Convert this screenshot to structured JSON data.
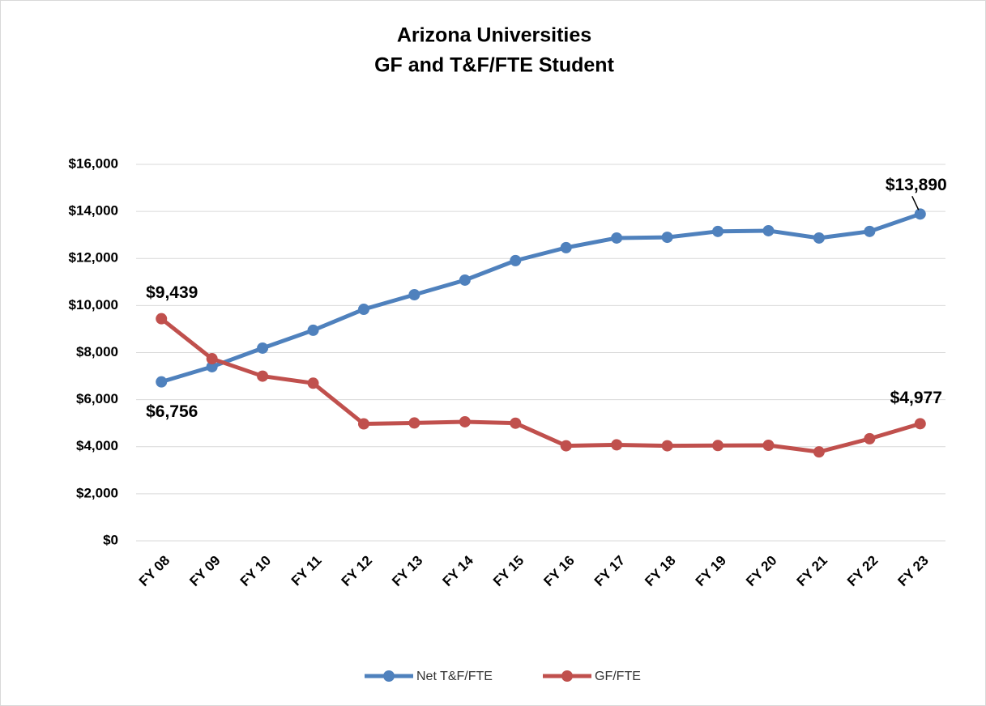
{
  "chart_data": {
    "type": "line",
    "title": "Arizona Universities",
    "subtitle": "GF and T&F/FTE Student",
    "categories": [
      "FY 08",
      "FY 09",
      "FY 10",
      "FY 11",
      "FY 12",
      "FY 13",
      "FY 14",
      "FY 15",
      "FY 16",
      "FY 17",
      "FY 18",
      "FY 19",
      "FY 20",
      "FY 21",
      "FY 22",
      "FY 23"
    ],
    "series": [
      {
        "name": "Net T&F/FTE",
        "color": "#4f81bd",
        "values": [
          6756,
          7400,
          8190,
          8950,
          9840,
          10460,
          11080,
          11910,
          12460,
          12870,
          12900,
          13150,
          13180,
          12870,
          13150,
          13890
        ],
        "value_labels": [
          "$6,756",
          null,
          null,
          null,
          null,
          null,
          null,
          null,
          null,
          null,
          null,
          null,
          null,
          null,
          null,
          "$13,890"
        ]
      },
      {
        "name": "GF/FTE",
        "color": "#c0504d",
        "values": [
          9439,
          7740,
          7000,
          6700,
          4970,
          5010,
          5060,
          5000,
          4040,
          4080,
          4040,
          4050,
          4060,
          3780,
          4340,
          4977
        ],
        "value_labels": [
          "$9,439",
          null,
          null,
          null,
          null,
          null,
          null,
          null,
          null,
          null,
          null,
          null,
          null,
          null,
          null,
          "$4,977"
        ]
      }
    ],
    "ylim": [
      0,
      16000
    ],
    "yticks": [
      {
        "value": 0,
        "label": "$0"
      },
      {
        "value": 2000,
        "label": "$2,000"
      },
      {
        "value": 4000,
        "label": "$4,000"
      },
      {
        "value": 6000,
        "label": "$6,000"
      },
      {
        "value": 8000,
        "label": "$8,000"
      },
      {
        "value": 10000,
        "label": "$10,000"
      },
      {
        "value": 12000,
        "label": "$12,000"
      },
      {
        "value": 14000,
        "label": "$14,000"
      },
      {
        "value": 16000,
        "label": "$16,000"
      }
    ],
    "grid": true,
    "legend": "bottom"
  }
}
